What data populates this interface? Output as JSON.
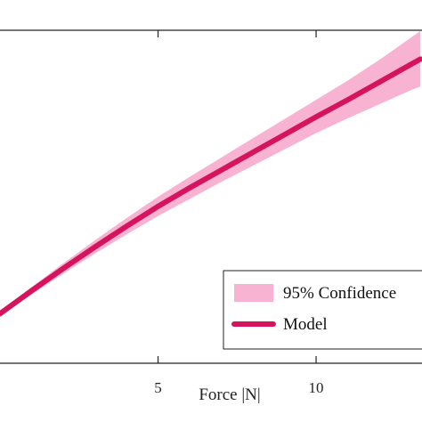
{
  "chart_data": {
    "type": "line",
    "xlabel": "Force |N|",
    "x_ticks": [
      5,
      10
    ],
    "top_tick_label": "",
    "series": [
      {
        "name": "Model",
        "kind": "line",
        "color": "#d6145e",
        "x": [
          -1.35,
          0,
          1,
          2,
          3,
          4,
          5,
          6,
          7,
          8,
          9,
          10,
          11,
          12,
          13,
          13.3
        ],
        "y": [
          0.04,
          0.067,
          0.098,
          0.128,
          0.157,
          0.185,
          0.212,
          0.237,
          0.261,
          0.285,
          0.309,
          0.333,
          0.356,
          0.38,
          0.404,
          0.411
        ]
      },
      {
        "name": "95% Confidence",
        "kind": "band",
        "color": "#f9b3d2",
        "x": [
          -1.35,
          0,
          1,
          2,
          3,
          4,
          5,
          6,
          7,
          8,
          9,
          10,
          11,
          12,
          13,
          13.3
        ],
        "lower": [
          0.037,
          0.064,
          0.093,
          0.121,
          0.148,
          0.174,
          0.199,
          0.222,
          0.245,
          0.267,
          0.289,
          0.311,
          0.331,
          0.35,
          0.369,
          0.374
        ],
        "upper": [
          0.043,
          0.07,
          0.103,
          0.135,
          0.166,
          0.196,
          0.225,
          0.252,
          0.278,
          0.304,
          0.33,
          0.356,
          0.382,
          0.41,
          0.44,
          0.449
        ]
      }
    ],
    "legend": {
      "position": "bottom-right",
      "entries": [
        "95% Confidence",
        "Model"
      ]
    },
    "grid": false
  }
}
